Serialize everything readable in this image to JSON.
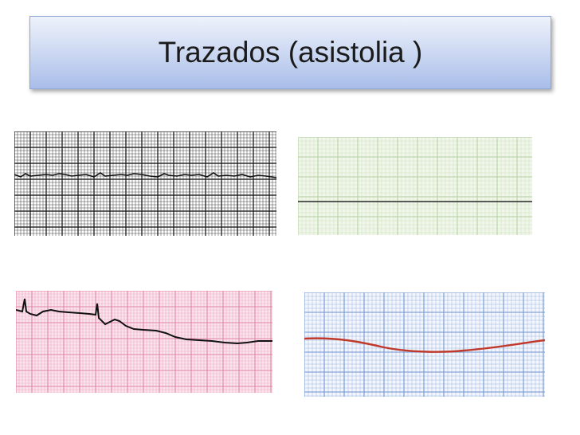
{
  "slide": {
    "title": "Trazados (asistolia )"
  },
  "strips": [
    {
      "id": "strip-1",
      "name": "ecg-strip-black-grid",
      "grid_color": "#222222",
      "paper_color": "#ffffff",
      "trace_color": "#111111"
    },
    {
      "id": "strip-2",
      "name": "ecg-strip-green-grid",
      "grid_color": "#b9d3a6",
      "paper_color": "#f1f6ea",
      "trace_color": "#222222"
    },
    {
      "id": "strip-3",
      "name": "ecg-strip-pink-grid",
      "grid_color": "#e07aa0",
      "paper_color": "#fbe3ec",
      "trace_color": "#111111"
    },
    {
      "id": "strip-4",
      "name": "ecg-strip-blue-grid",
      "grid_color": "#7fa0d6",
      "paper_color": "#f3f6fc",
      "trace_color": "#c0392b"
    }
  ]
}
